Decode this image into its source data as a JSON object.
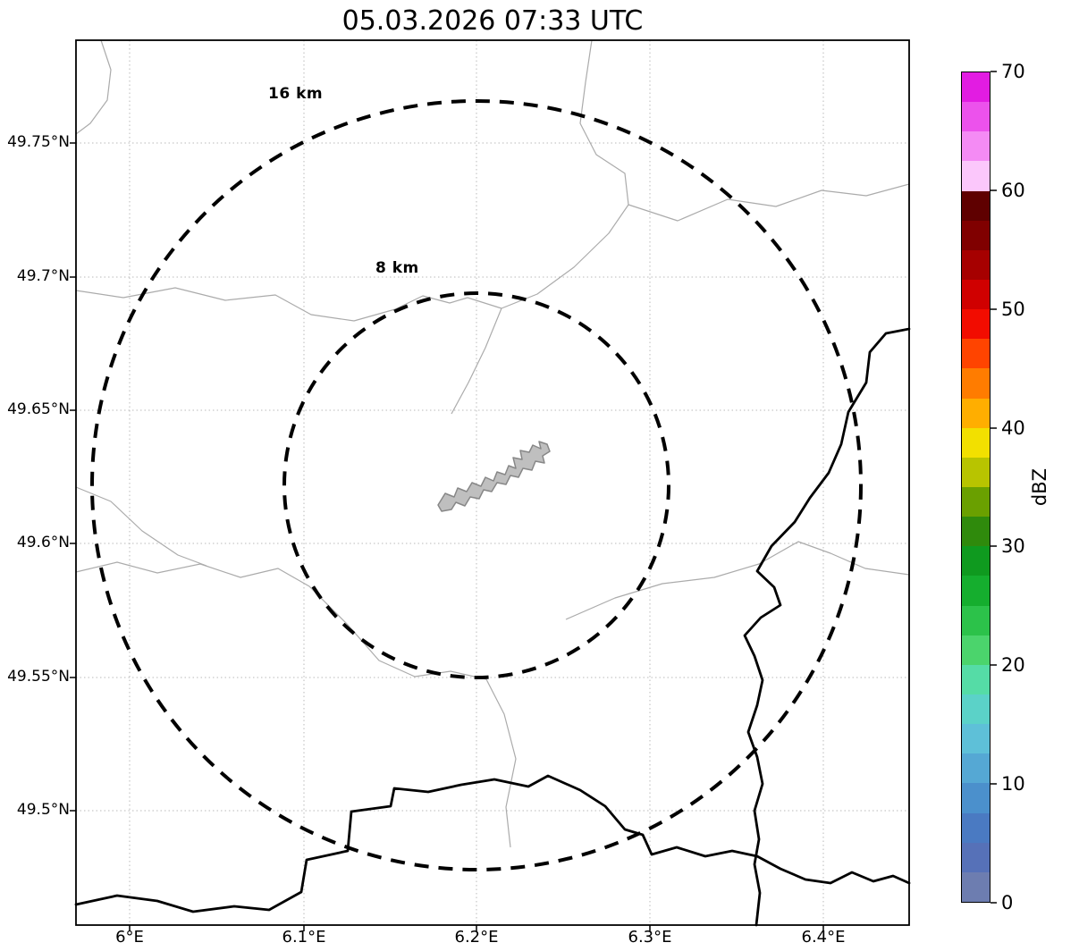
{
  "title": "05.03.2026 07:33 UTC",
  "map": {
    "rings": {
      "outer_label": "16 km",
      "inner_label": "8 km"
    },
    "x_axis": {
      "ticks": [
        "6°E",
        "6.1°E",
        "6.2°E",
        "6.3°E",
        "6.4°E"
      ]
    },
    "y_axis": {
      "ticks": [
        "49.75°N",
        "49.7°N",
        "49.65°N",
        "49.6°N",
        "49.55°N",
        "49.5°N"
      ]
    }
  },
  "colorbar": {
    "label": "dBZ",
    "min": 0,
    "max": 70,
    "ticks": [
      "70",
      "60",
      "50",
      "40",
      "30",
      "20",
      "10",
      "0"
    ],
    "segments_top_to_bottom": [
      "#e21ce2",
      "#ec52ec",
      "#f48bf4",
      "#fbc7fb",
      "#5f0000",
      "#800000",
      "#a60000",
      "#d00000",
      "#f20c00",
      "#ff4400",
      "#ff7c00",
      "#ffae00",
      "#f2e000",
      "#b8c400",
      "#6aa000",
      "#2f8a0c",
      "#0f9a1f",
      "#15ae2e",
      "#2cc24a",
      "#4bd46c",
      "#55dca6",
      "#5bd2c8",
      "#5ec0d8",
      "#55a8d4",
      "#4b90cc",
      "#4a7ac2",
      "#5671b8",
      "#6d7db0"
    ]
  },
  "chart_data": {
    "type": "map",
    "title": "05.03.2026 07:33 UTC",
    "x_tick_labels": [
      "6°E",
      "6.1°E",
      "6.2°E",
      "6.3°E",
      "6.4°E"
    ],
    "y_tick_labels": [
      "49.75°N",
      "49.7°N",
      "49.65°N",
      "49.6°N",
      "49.55°N",
      "49.5°N"
    ],
    "range_ring_labels": [
      "8 km",
      "16 km"
    ],
    "colorbar_label": "dBZ",
    "colorbar_range": [
      0,
      70
    ],
    "colorbar_tick_step": 10,
    "grid": true
  }
}
